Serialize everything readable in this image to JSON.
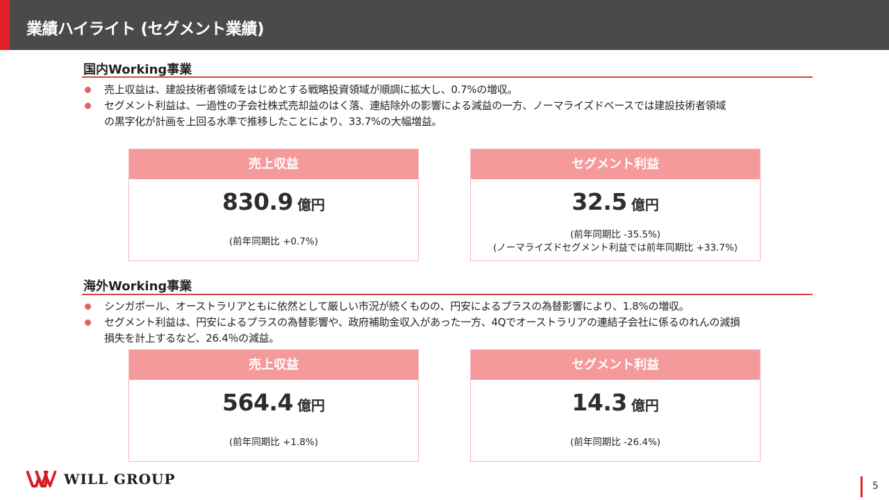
{
  "header": {
    "title": "業績ハイライト (セグメント業績)"
  },
  "domestic": {
    "title": "国内Working事業",
    "bullets": [
      "売上収益は、建設技術者領域をはじめとする戦略投資領域が順調に拡大し、0.7%の増収。",
      "セグメント利益は、一過性の子会社株式売却益のはく落、連結除外の影響による減益の一方、ノーマライズドベースでは建設技術者領域",
      "の黒字化が計画を上回る水準で推移したことにより、33.7%の大幅増益。"
    ],
    "revenue": {
      "label": "売上収益",
      "value": "830.9",
      "unit": "億円",
      "note": "(前年同期比 +0.7%)"
    },
    "profit": {
      "label": "セグメント利益",
      "value": "32.5",
      "unit": "億円",
      "note": "(前年同期比 -35.5%)",
      "note2": "(ノーマライズドセグメント利益では前年同期比 +33.7%)"
    }
  },
  "overseas": {
    "title": "海外Working事業",
    "bullets": [
      "シンガポール、オーストラリアともに依然として厳しい市況が続くものの、円安によるプラスの為替影響により、1.8%の増収。",
      "セグメント利益は、円安によるプラスの為替影響や、政府補助金収入があった一方、4Qでオーストラリアの連結子会社に係るのれんの減損",
      "損失を計上するなど、26.4％の減益。"
    ],
    "revenue": {
      "label": "売上収益",
      "value": "564.4",
      "unit": "億円",
      "note": "(前年同期比 +1.8%)"
    },
    "profit": {
      "label": "セグメント利益",
      "value": "14.3",
      "unit": "億円",
      "note": "(前年同期比 -26.4%)"
    }
  },
  "footer": {
    "brand": "WILL GROUP",
    "page_number": "5"
  },
  "colors": {
    "header_bg": "#4a4a4a",
    "accent_red": "#e21e26",
    "card_header": "#f59a9b",
    "rule": "#d7414a",
    "bullet": "#e35d6a"
  }
}
